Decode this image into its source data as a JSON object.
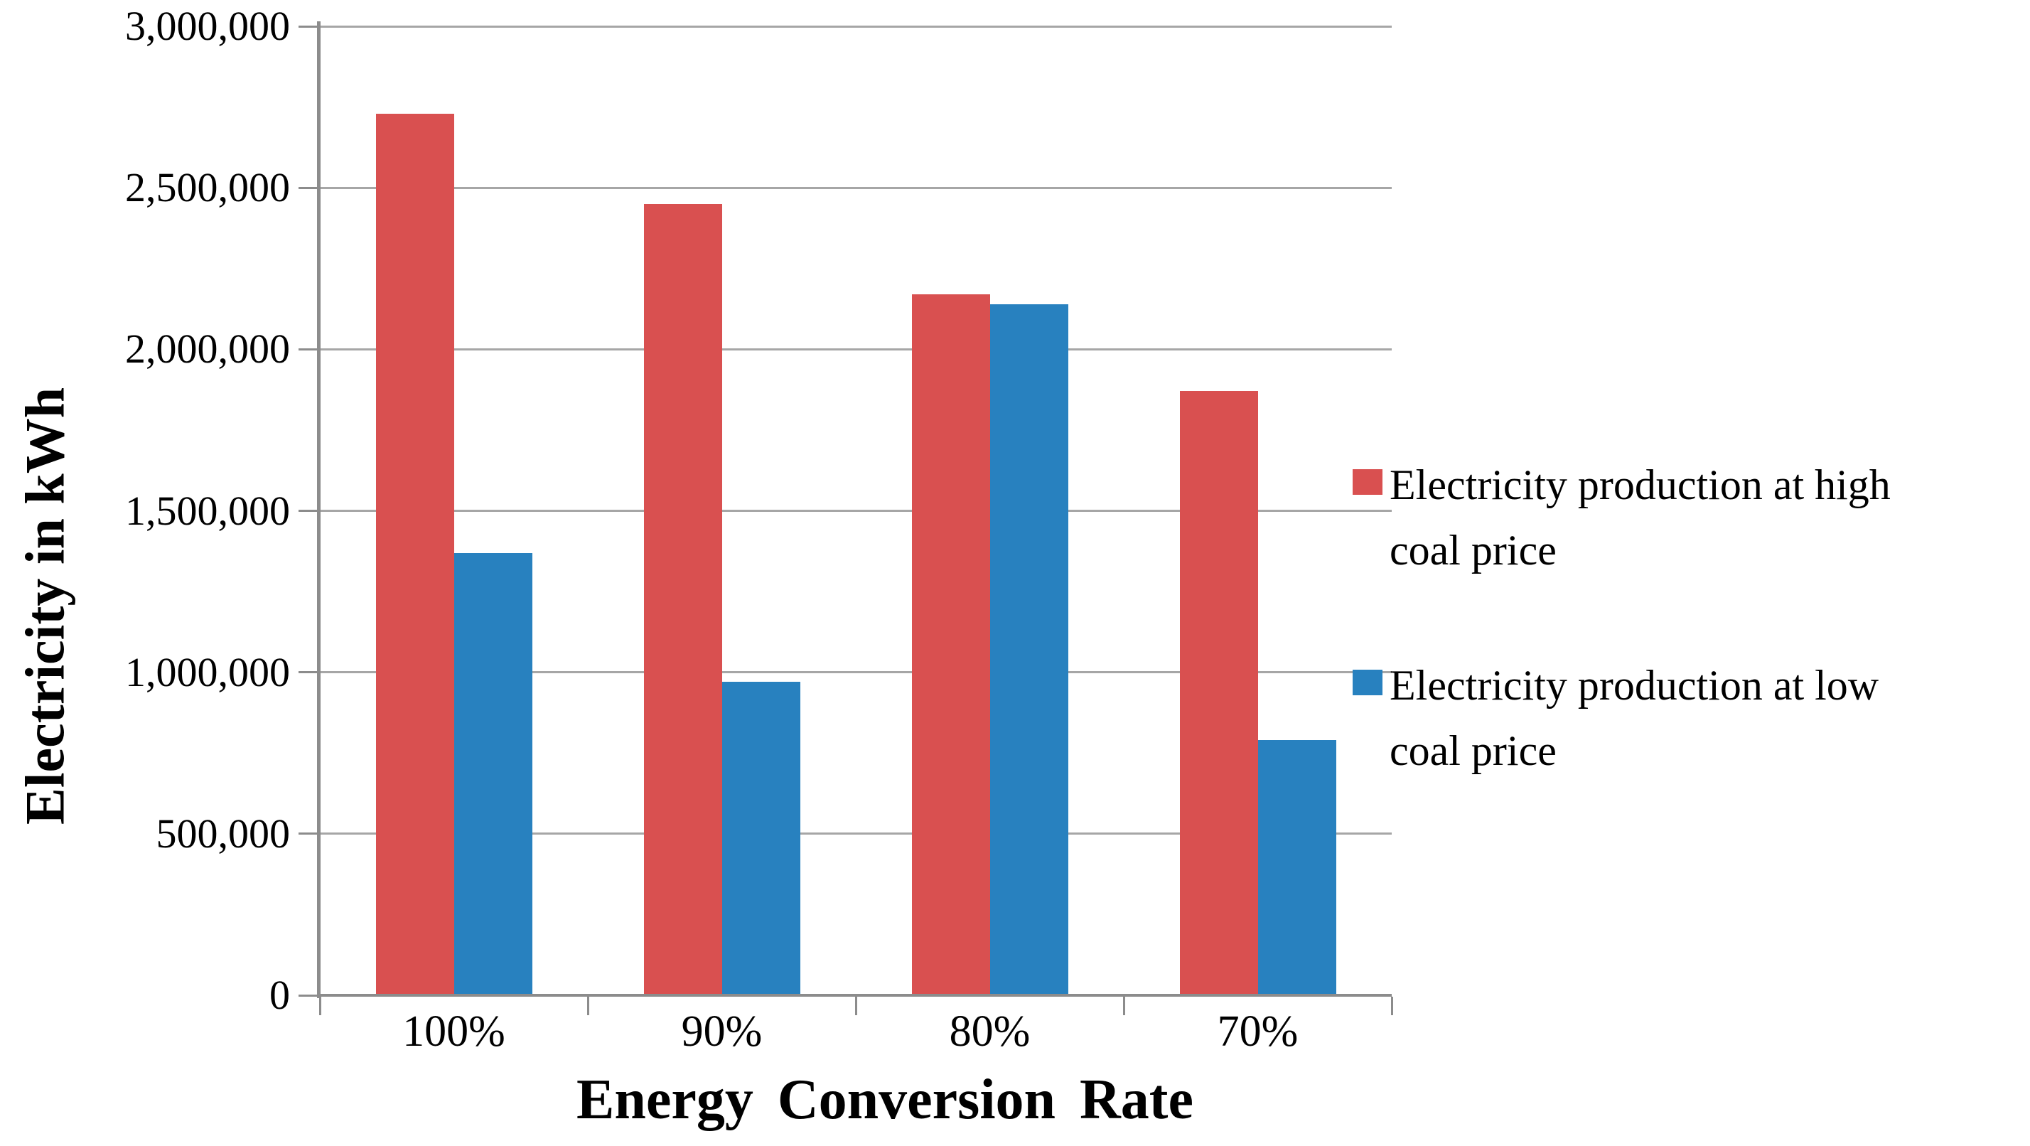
{
  "page": {
    "background": "#FFFFFF"
  },
  "chart_data": {
    "type": "bar",
    "title": "",
    "categories": [
      "100%",
      "90%",
      "80%",
      "70%"
    ],
    "series": [
      {
        "name": "Electricity production at high coal price",
        "color": "#D95050",
        "values": [
          2730000,
          2450000,
          2170000,
          1870000
        ]
      },
      {
        "name": "Electricity production at low coal price",
        "color": "#2881BF",
        "values": [
          1370000,
          970000,
          2140000,
          790000
        ]
      }
    ],
    "xlabel": "Energy Conversion Rate",
    "ylabel": "Electricity in kWh",
    "ylim": [
      0,
      3000000
    ],
    "yticks": [
      0,
      500000,
      1000000,
      1500000,
      2000000,
      2500000,
      3000000
    ],
    "ytick_labels": [
      "0",
      "500,000",
      "1,000,000",
      "1,500,000",
      "2,000,000",
      "2,500,000",
      "3,000,000"
    ],
    "grid": true,
    "legend_position": "right",
    "colors": {
      "gridline": "#A6A6A6",
      "axis": "#8C8C8C",
      "text": "#000000"
    }
  },
  "legend": {
    "items": [
      {
        "color": "#D95050",
        "lines": [
          "Electricity production at high",
          "coal price"
        ]
      },
      {
        "color": "#2881BF",
        "lines": [
          "Electricity production at low",
          "coal price"
        ]
      }
    ]
  }
}
